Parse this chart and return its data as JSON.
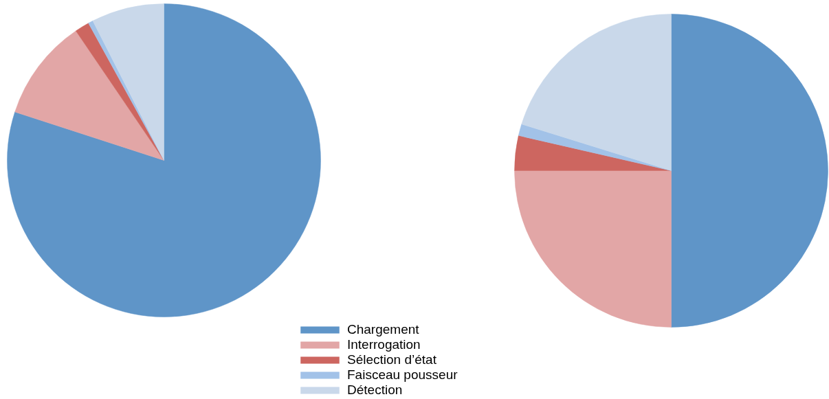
{
  "chart_data": [
    {
      "type": "pie",
      "categories": [
        "Chargement",
        "Interrogation",
        "Sélection d’état",
        "Faisceau pousseur",
        "Détection"
      ],
      "values": [
        80,
        10.5,
        1.5,
        0.5,
        7.5
      ],
      "colors": [
        "#5f95c8",
        "#e2a6a6",
        "#cd6660",
        "#a2c2e8",
        "#c9d8ea"
      ],
      "legend": "bottom"
    },
    {
      "type": "pie",
      "categories": [
        null,
        null,
        null,
        null,
        null
      ],
      "values": [
        50,
        25,
        3.6,
        1.2,
        20.2
      ],
      "colors": [
        "#5f95c8",
        "#e2a6a6",
        "#cd6660",
        "#a2c2e8",
        "#c9d8ea"
      ]
    }
  ]
}
